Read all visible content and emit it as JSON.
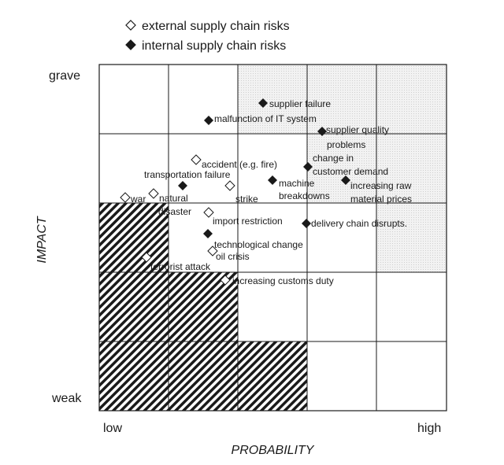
{
  "legend": {
    "external": "external supply chain risks",
    "internal": "internal supply chain risks"
  },
  "axes": {
    "y_title": "IMPACT",
    "y_top": "grave",
    "y_bottom": "weak",
    "x_title": "PROBABILITY",
    "x_left": "low",
    "x_right": "high"
  },
  "risks": [
    {
      "id": "supplier-failure",
      "type": "internal",
      "lines": [
        "supplier failure"
      ]
    },
    {
      "id": "malfunction-it",
      "type": "internal",
      "lines": [
        "malfunction of IT system"
      ]
    },
    {
      "id": "supplier-quality",
      "type": "internal",
      "lines": [
        "supplier quality",
        "problems"
      ]
    },
    {
      "id": "change-demand",
      "type": "internal",
      "lines": [
        "change in",
        "customer demand"
      ]
    },
    {
      "id": "accident",
      "type": "external",
      "lines": [
        "accident (e.g. fire)"
      ]
    },
    {
      "id": "transportation-failure",
      "type": "internal",
      "lines": [
        "transportation failure"
      ]
    },
    {
      "id": "strike",
      "type": "external",
      "lines": [
        "strike"
      ]
    },
    {
      "id": "machine-breakdowns",
      "type": "internal",
      "lines": [
        "machine",
        "breakdowns"
      ]
    },
    {
      "id": "raw-material-prices",
      "type": "internal",
      "lines": [
        "increasing raw",
        "material prices"
      ]
    },
    {
      "id": "war",
      "type": "external",
      "lines": [
        "war"
      ]
    },
    {
      "id": "natural-disaster",
      "type": "external",
      "lines": [
        "natural",
        "disaster"
      ]
    },
    {
      "id": "import-restriction",
      "type": "external",
      "lines": [
        "import restriction"
      ]
    },
    {
      "id": "delivery-chain",
      "type": "internal",
      "lines": [
        "delivery chain disrupts."
      ]
    },
    {
      "id": "technological-change",
      "type": "internal",
      "lines": [
        "technological change"
      ]
    },
    {
      "id": "oil-crisis",
      "type": "external",
      "lines": [
        "oil crisis"
      ]
    },
    {
      "id": "terrorist-attack",
      "type": "external",
      "lines": [
        "terrorist attack"
      ]
    },
    {
      "id": "customs-duty",
      "type": "external",
      "lines": [
        "increasing customs duty"
      ]
    }
  ],
  "legend_colors": {
    "internal_fill": "#1a1a1a",
    "external_fill": "#ffffff"
  }
}
